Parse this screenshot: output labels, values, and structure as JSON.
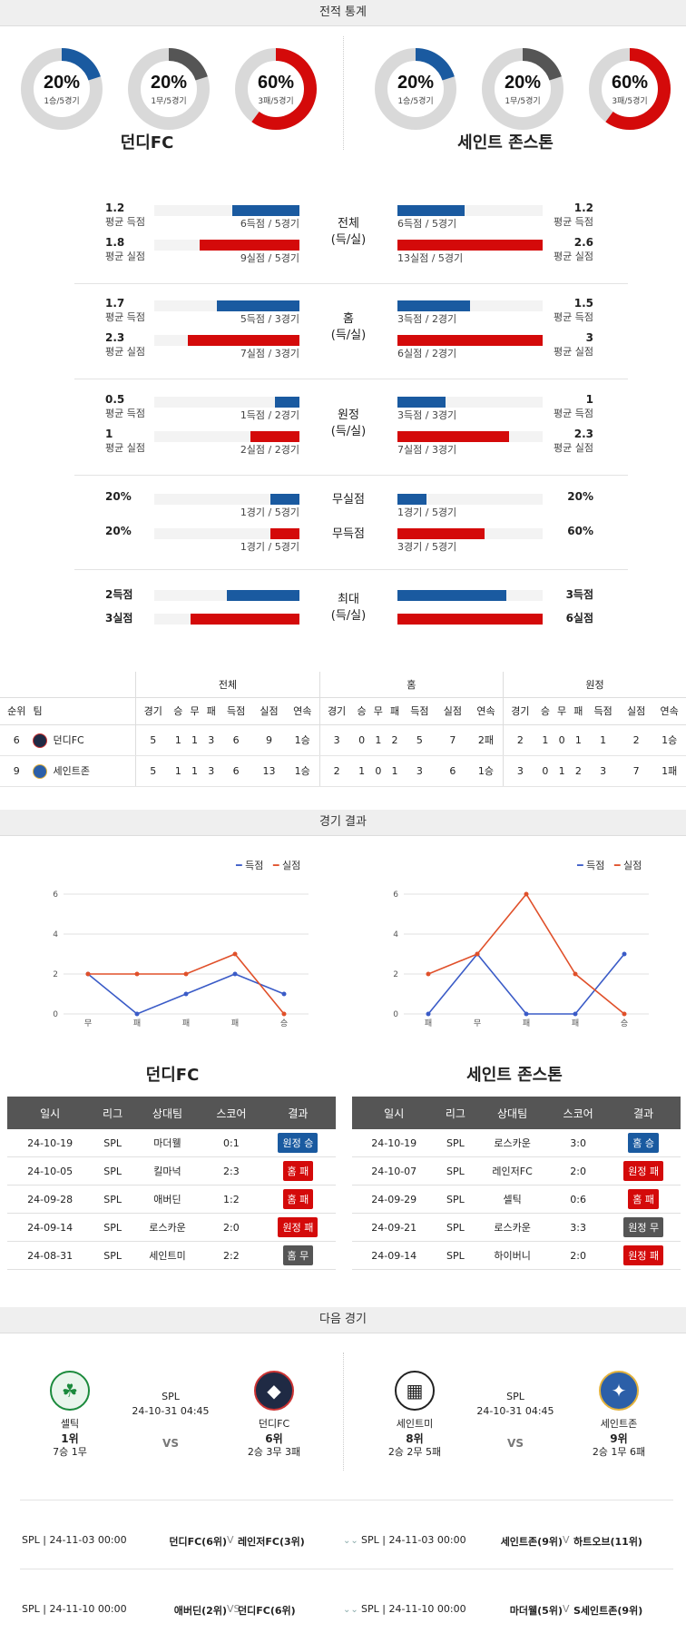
{
  "sections": {
    "stats": "전적 통계",
    "results": "경기 결과",
    "next": "다음 경기"
  },
  "donuts": [
    {
      "pct": "20%",
      "sub": "1승/5경기",
      "value": 0.2,
      "color": "#1a5aa0"
    },
    {
      "pct": "20%",
      "sub": "1무/5경기",
      "value": 0.2,
      "color": "#555555"
    },
    {
      "pct": "60%",
      "sub": "3패/5경기",
      "value": 0.6,
      "color": "#d40a0a"
    },
    {
      "pct": "20%",
      "sub": "1승/5경기",
      "value": 0.2,
      "color": "#1a5aa0"
    },
    {
      "pct": "20%",
      "sub": "1무/5경기",
      "value": 0.2,
      "color": "#555555"
    },
    {
      "pct": "60%",
      "sub": "3패/5경기",
      "value": 0.6,
      "color": "#d40a0a"
    }
  ],
  "teams": {
    "home": "던디FC",
    "away": "세인트 존스톤"
  },
  "stat_groups": [
    {
      "label1": "전체",
      "label2": "(득/실)",
      "rows": [
        {
          "lv": "1.2",
          "ll": "평균 득점",
          "lcap": "6득점 / 5경기",
          "lfrac": 0.46,
          "rv": "1.2",
          "rl": "평균 득점",
          "rcap": "6득점 / 5경기",
          "rfrac": 0.46,
          "color": "blue"
        },
        {
          "lv": "1.8",
          "ll": "평균 실점",
          "lcap": "9실점 / 5경기",
          "lfrac": 0.69,
          "rv": "2.6",
          "rl": "평균 실점",
          "rcap": "13실점 / 5경기",
          "rfrac": 1.0,
          "color": "red"
        }
      ]
    },
    {
      "label1": "홈",
      "label2": "(득/실)",
      "rows": [
        {
          "lv": "1.7",
          "ll": "평균 득점",
          "lcap": "5득점 / 3경기",
          "lfrac": 0.57,
          "rv": "1.5",
          "rl": "평균 득점",
          "rcap": "3득점 / 2경기",
          "rfrac": 0.5,
          "color": "blue"
        },
        {
          "lv": "2.3",
          "ll": "평균 실점",
          "lcap": "7실점 / 3경기",
          "lfrac": 0.77,
          "rv": "3",
          "rl": "평균 실점",
          "rcap": "6실점 / 2경기",
          "rfrac": 1.0,
          "color": "red"
        }
      ]
    },
    {
      "label1": "원정",
      "label2": "(득/실)",
      "rows": [
        {
          "lv": "0.5",
          "ll": "평균 득점",
          "lcap": "1득점 / 2경기",
          "lfrac": 0.17,
          "rv": "1",
          "rl": "평균 득점",
          "rcap": "3득점 / 3경기",
          "rfrac": 0.33,
          "color": "blue"
        },
        {
          "lv": "1",
          "ll": "평균 실점",
          "lcap": "2실점 / 2경기",
          "lfrac": 0.34,
          "rv": "2.3",
          "rl": "평균 실점",
          "rcap": "7실점 / 3경기",
          "rfrac": 0.77,
          "color": "red"
        }
      ]
    }
  ],
  "clean": [
    {
      "label": "무실점",
      "lv": "20%",
      "lcap": "1경기 / 5경기",
      "lfrac": 0.2,
      "rv": "20%",
      "rcap": "1경기 / 5경기",
      "rfrac": 0.2,
      "color": "blue"
    },
    {
      "label": "무득점",
      "lv": "20%",
      "lcap": "1경기 / 5경기",
      "lfrac": 0.2,
      "rv": "60%",
      "rcap": "3경기 / 5경기",
      "rfrac": 0.6,
      "color": "red"
    }
  ],
  "max": {
    "label1": "최대",
    "label2": "(득/실)",
    "rows": [
      {
        "lv": "2득점",
        "lfrac": 0.5,
        "rv": "3득점",
        "rfrac": 0.75,
        "color": "blue"
      },
      {
        "lv": "3실점",
        "lfrac": 0.75,
        "rv": "6실점",
        "rfrac": 1.0,
        "color": "red"
      }
    ]
  },
  "standings": {
    "group_headers": [
      "전체",
      "홈",
      "원정"
    ],
    "headers": [
      "순위",
      "팀",
      "경기",
      "승",
      "무",
      "패",
      "득점",
      "실점",
      "연속",
      "경기",
      "승",
      "무",
      "패",
      "득점",
      "실점",
      "연속",
      "경기",
      "승",
      "무",
      "패",
      "득점",
      "실점",
      "연속"
    ],
    "rows": [
      [
        "6",
        "던디FC",
        "5",
        "1",
        "1",
        "3",
        "6",
        "9",
        "1승",
        "3",
        "0",
        "1",
        "2",
        "5",
        "7",
        "2패",
        "2",
        "1",
        "0",
        "1",
        "1",
        "2",
        "1승"
      ],
      [
        "9",
        "세인트존",
        "5",
        "1",
        "1",
        "3",
        "6",
        "13",
        "1승",
        "2",
        "1",
        "0",
        "1",
        "3",
        "6",
        "1승",
        "3",
        "0",
        "1",
        "2",
        "3",
        "7",
        "1패"
      ]
    ]
  },
  "legend": {
    "scored": "득점",
    "conceded": "실점"
  },
  "chart_data": [
    {
      "type": "line",
      "categories": [
        "무",
        "패",
        "패",
        "패",
        "승"
      ],
      "ylim": [
        0,
        6
      ],
      "yticks": [
        "0",
        "2",
        "4",
        "6"
      ],
      "series": [
        {
          "name": "득점",
          "values": [
            2,
            0,
            1,
            2,
            1
          ],
          "color": "#3a5bc7"
        },
        {
          "name": "실점",
          "values": [
            2,
            2,
            2,
            3,
            0
          ],
          "color": "#e0502a"
        }
      ]
    },
    {
      "type": "line",
      "categories": [
        "패",
        "무",
        "패",
        "패",
        "승"
      ],
      "ylim": [
        0,
        6
      ],
      "yticks": [
        "0",
        "2",
        "4",
        "6"
      ],
      "series": [
        {
          "name": "득점",
          "values": [
            0,
            3,
            0,
            0,
            3
          ],
          "color": "#3a5bc7"
        },
        {
          "name": "실점",
          "values": [
            2,
            3,
            6,
            2,
            0
          ],
          "color": "#e0502a"
        }
      ]
    }
  ],
  "result_tables": {
    "headers": [
      "일시",
      "리그",
      "상대팀",
      "스코어",
      "결과"
    ],
    "home": [
      [
        "24-10-19",
        "SPL",
        "마더웰",
        "0:1",
        "원정 승",
        "blue"
      ],
      [
        "24-10-05",
        "SPL",
        "킬마넉",
        "2:3",
        "홈 패",
        "red"
      ],
      [
        "24-09-28",
        "SPL",
        "애버딘",
        "1:2",
        "홈 패",
        "red"
      ],
      [
        "24-09-14",
        "SPL",
        "로스카운",
        "2:0",
        "원정 패",
        "red"
      ],
      [
        "24-08-31",
        "SPL",
        "세인트미",
        "2:2",
        "홈 무",
        "gray"
      ]
    ],
    "away": [
      [
        "24-10-19",
        "SPL",
        "로스카운",
        "3:0",
        "홈 승",
        "blue"
      ],
      [
        "24-10-07",
        "SPL",
        "레인저FC",
        "2:0",
        "원정 패",
        "red"
      ],
      [
        "24-09-29",
        "SPL",
        "셀틱",
        "0:6",
        "홈 패",
        "red"
      ],
      [
        "24-09-21",
        "SPL",
        "로스카운",
        "3:3",
        "원정 무",
        "gray"
      ],
      [
        "24-09-14",
        "SPL",
        "하이버니",
        "2:0",
        "원정 패",
        "red"
      ]
    ]
  },
  "next_matches": [
    {
      "league": "SPL",
      "time": "24-10-31 04:45",
      "vs": "VS",
      "left": {
        "name": "셀틱",
        "rank": "1위",
        "record": "7승 1무"
      },
      "right": {
        "name": "던디FC",
        "rank": "6위",
        "record": "2승 3무 3패"
      }
    },
    {
      "league": "SPL",
      "time": "24-10-31 04:45",
      "vs": "VS",
      "left": {
        "name": "세인트미",
        "rank": "8위",
        "record": "2승 2무 5패"
      },
      "right": {
        "name": "세인트존",
        "rank": "9위",
        "record": "2승 1무 6패"
      }
    }
  ],
  "future": [
    {
      "left": "SPL | 24-11-03 00:00",
      "lt1": "던디FC(6위)",
      "lv": "V",
      "lt2": "레인저FC(3위)",
      "right": "SPL | 24-11-03 00:00",
      "rt1": "세인트존(9위)",
      "rv": "V",
      "rt2": "하트오브(11위)"
    },
    {
      "left": "SPL | 24-11-10 00:00",
      "lt1": "애버딘(2위)",
      "lv": "VS",
      "lt2": "던디FC(6위)",
      "right": "SPL | 24-11-10 00:00",
      "rt1": "마더웰(5위)",
      "rv": "V",
      "rt2": "S세인트존(9위)"
    }
  ]
}
